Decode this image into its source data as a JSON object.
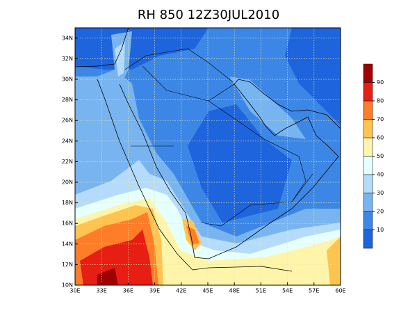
{
  "title": "RH 850 12Z30JUL2010",
  "longitude_labels": [
    "30E",
    "33E",
    "36E",
    "39E",
    "42E",
    "45E",
    "48E",
    "51E",
    "54E",
    "57E",
    "60E"
  ],
  "latitude_labels": [
    "10N",
    "12N",
    "14N",
    "16N",
    "18N",
    "20N",
    "22N",
    "24N",
    "26N",
    "28N",
    "30N",
    "32N",
    "34N"
  ],
  "colorbar": {
    "labels": [
      10,
      20,
      30,
      40,
      50,
      60,
      70,
      80,
      90
    ],
    "colors": [
      "#1e64dc",
      "#3c87e6",
      "#78b4f0",
      "#b4dcfa",
      "#e6ffff",
      "#fff5aa",
      "#ffc350",
      "#ff7d28",
      "#e61e14",
      "#a00000"
    ]
  }
}
